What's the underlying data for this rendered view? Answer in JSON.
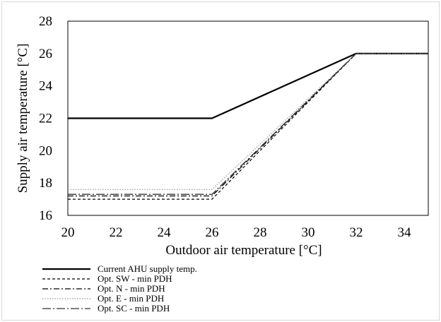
{
  "chart_data": {
    "type": "line",
    "xlabel": "Outdoor air temperature  [°C]",
    "ylabel": "Supply air temperature [°C]",
    "xlim": [
      20,
      35
    ],
    "ylim": [
      16,
      28
    ],
    "xticks": [
      20,
      22,
      24,
      26,
      28,
      30,
      32,
      34
    ],
    "yticks": [
      16,
      18,
      20,
      22,
      24,
      26,
      28
    ],
    "grid": false,
    "legend_position": "bottom",
    "series": [
      {
        "name": "Current AHU supply temp.",
        "style": "solid",
        "color": "#000000",
        "x": [
          20,
          26,
          32,
          35
        ],
        "y": [
          22,
          22,
          26,
          26
        ]
      },
      {
        "name": "Opt. SW - min PDH",
        "style": "dashed",
        "color": "#000000",
        "x": [
          20,
          26,
          32,
          35
        ],
        "y": [
          17.0,
          17.0,
          26,
          26
        ]
      },
      {
        "name": "Opt. N - min PDH",
        "style": "dashdot",
        "color": "#000000",
        "x": [
          20,
          26,
          32,
          35
        ],
        "y": [
          17.2,
          17.2,
          26,
          26
        ]
      },
      {
        "name": "Opt. E - min PDH",
        "style": "dotted",
        "color": "#999999",
        "x": [
          20,
          26,
          32,
          35
        ],
        "y": [
          17.6,
          17.6,
          26,
          26
        ]
      },
      {
        "name": "Opt. SC - min PDH",
        "style": "longdashdot",
        "color": "#333333",
        "x": [
          20,
          26,
          32,
          35
        ],
        "y": [
          17.3,
          17.3,
          26,
          26
        ]
      }
    ]
  }
}
